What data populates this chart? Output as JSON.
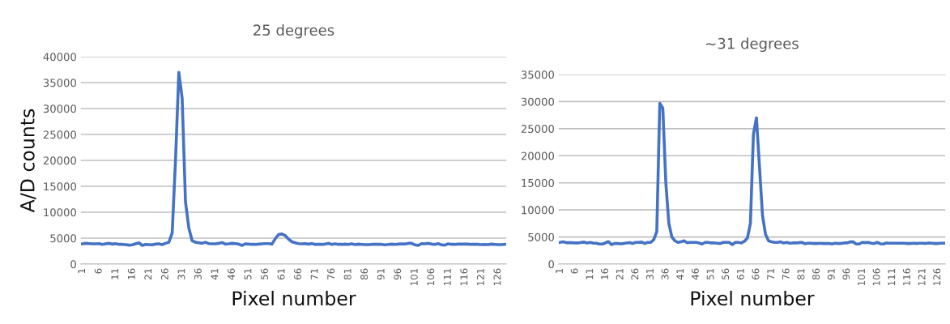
{
  "chart_data": [
    {
      "type": "line",
      "title": "25 degrees",
      "xlabel": "Pixel number",
      "ylabel": "A/D counts",
      "grid": "y",
      "ylim": [
        0,
        40000
      ],
      "yticks": [
        0,
        5000,
        10000,
        15000,
        20000,
        25000,
        30000,
        35000,
        40000
      ],
      "categories": [
        "1",
        null,
        null,
        null,
        null,
        "6",
        null,
        null,
        null,
        null,
        "11",
        null,
        null,
        null,
        null,
        "16",
        null,
        null,
        null,
        null,
        "21",
        null,
        null,
        null,
        null,
        "26",
        null,
        null,
        null,
        null,
        "31",
        null,
        null,
        null,
        null,
        "36",
        null,
        null,
        null,
        null,
        "41",
        null,
        null,
        null,
        null,
        "46",
        null,
        null,
        null,
        null,
        "51",
        null,
        null,
        null,
        null,
        "56",
        null,
        null,
        null,
        null,
        "61",
        null,
        null,
        null,
        null,
        "66",
        null,
        null,
        null,
        null,
        "71",
        null,
        null,
        null,
        null,
        "76",
        null,
        null,
        null,
        null,
        "81",
        null,
        null,
        null,
        null,
        "86",
        null,
        null,
        null,
        null,
        "91",
        null,
        null,
        null,
        null,
        "96",
        null,
        null,
        null,
        null,
        "101",
        null,
        null,
        null,
        null,
        "106",
        null,
        null,
        null,
        null,
        "111",
        null,
        null,
        null,
        null,
        "116",
        null,
        null,
        null,
        null,
        "121",
        null,
        null,
        null,
        null,
        "126",
        null,
        null
      ],
      "series": [
        {
          "color": "#4472c4",
          "values": [
            3900,
            4000,
            3950,
            3900,
            3900,
            3950,
            3800,
            3900,
            4000,
            3850,
            3950,
            3800,
            3800,
            3750,
            3650,
            3700,
            3900,
            4100,
            3600,
            3800,
            3750,
            3700,
            3850,
            3900,
            3750,
            4000,
            4200,
            6000,
            20000,
            37000,
            32000,
            12000,
            7000,
            4500,
            4200,
            4100,
            4000,
            4200,
            3950,
            3900,
            3900,
            4000,
            4150,
            3850,
            3900,
            4000,
            3950,
            3850,
            3600,
            3900,
            3850,
            3800,
            3800,
            3850,
            3900,
            3950,
            3950,
            3850,
            4900,
            5700,
            5800,
            5500,
            4800,
            4300,
            4100,
            3950,
            3900,
            3950,
            3850,
            3950,
            3800,
            3800,
            3800,
            3850,
            4000,
            3800,
            3900,
            3800,
            3800,
            3850,
            3800,
            3900,
            3750,
            3850,
            3800,
            3750,
            3750,
            3800,
            3800,
            3800,
            3800,
            3700,
            3800,
            3850,
            3800,
            3850,
            3900,
            3850,
            4000,
            4000,
            3700,
            3600,
            3950,
            3900,
            4000,
            3850,
            3800,
            3950,
            3700,
            3650,
            3900,
            3800,
            3800,
            3850,
            3850,
            3850,
            3850,
            3800,
            3800,
            3800,
            3750,
            3800,
            3750,
            3850,
            3800,
            3750,
            3750,
            3800
          ]
        }
      ]
    },
    {
      "type": "line",
      "title": "~31 degrees",
      "xlabel": "Pixel number",
      "grid": "y",
      "ylim": [
        0,
        35000
      ],
      "yticks": [
        0,
        5000,
        10000,
        15000,
        20000,
        25000,
        30000,
        35000
      ],
      "categories": [
        "1",
        null,
        null,
        null,
        null,
        "6",
        null,
        null,
        null,
        null,
        "11",
        null,
        null,
        null,
        null,
        "16",
        null,
        null,
        null,
        null,
        "21",
        null,
        null,
        null,
        null,
        "26",
        null,
        null,
        null,
        null,
        "31",
        null,
        null,
        null,
        null,
        "36",
        null,
        null,
        null,
        null,
        "41",
        null,
        null,
        null,
        null,
        "46",
        null,
        null,
        null,
        null,
        "51",
        null,
        null,
        null,
        null,
        "56",
        null,
        null,
        null,
        null,
        "61",
        null,
        null,
        null,
        null,
        "66",
        null,
        null,
        null,
        null,
        "71",
        null,
        null,
        null,
        null,
        "76",
        null,
        null,
        null,
        null,
        "81",
        null,
        null,
        null,
        null,
        "86",
        null,
        null,
        null,
        null,
        "91",
        null,
        null,
        null,
        null,
        "96",
        null,
        null,
        null,
        null,
        "101",
        null,
        null,
        null,
        null,
        "106",
        null,
        null,
        null,
        null,
        "111",
        null,
        null,
        null,
        null,
        "116",
        null,
        null,
        null,
        null,
        "121",
        null,
        null,
        null,
        null,
        "126",
        null,
        null
      ],
      "series": [
        {
          "color": "#4472c4",
          "values": [
            4000,
            4100,
            3950,
            3950,
            3950,
            3900,
            3900,
            4000,
            4050,
            3900,
            4000,
            3850,
            3850,
            3700,
            3700,
            3900,
            4150,
            3600,
            3800,
            3800,
            3750,
            3800,
            3900,
            3950,
            3800,
            4000,
            4000,
            4050,
            3800,
            4000,
            4000,
            4500,
            6000,
            29700,
            28800,
            15000,
            7500,
            5000,
            4300,
            4000,
            4100,
            4300,
            3950,
            4000,
            4000,
            4000,
            3900,
            3700,
            4000,
            4000,
            3900,
            3900,
            3850,
            3800,
            4000,
            4000,
            4000,
            3600,
            4000,
            4000,
            3900,
            4200,
            4800,
            7500,
            24000,
            27000,
            18000,
            9000,
            5500,
            4300,
            4100,
            4000,
            4000,
            4100,
            3900,
            4000,
            3850,
            3900,
            3900,
            3950,
            4000,
            3750,
            3850,
            3850,
            3800,
            3800,
            3850,
            3800,
            3800,
            3800,
            3700,
            3850,
            3800,
            3800,
            3900,
            3900,
            4100,
            4100,
            3700,
            3700,
            4000,
            3950,
            4000,
            3850,
            3800,
            4000,
            3750,
            3700,
            3900,
            3850,
            3850,
            3850,
            3850,
            3850,
            3850,
            3800,
            3800,
            3850,
            3800,
            3850,
            3850,
            3800,
            3900,
            3850,
            3800,
            3800,
            3850,
            3850
          ]
        }
      ]
    }
  ]
}
